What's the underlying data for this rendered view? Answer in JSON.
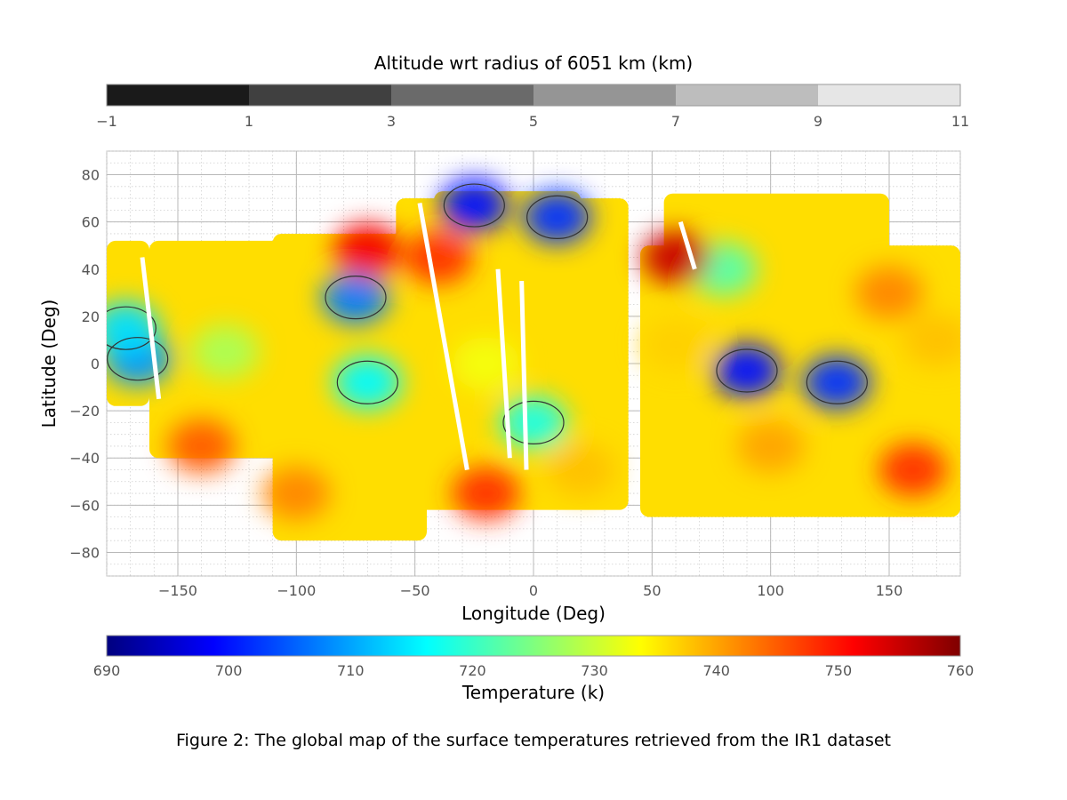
{
  "caption": "Figure 2: The global map of the surface temperatures retrieved from the IR1 dataset",
  "chart_data": {
    "type": "heatmap",
    "xlabel": "Longitude (Deg)",
    "ylabel": "Latitude (Deg)",
    "xlim": [
      -180,
      180
    ],
    "ylim": [
      -90,
      90
    ],
    "xticks": [
      -150,
      -100,
      -50,
      0,
      50,
      100,
      150
    ],
    "yticks": [
      80,
      60,
      40,
      20,
      0,
      -20,
      -40,
      -60,
      -80
    ],
    "grid": true,
    "colormap": "jet",
    "colorbar_temperature": {
      "label": "Temperature (k)",
      "range": [
        690,
        760
      ],
      "ticks": [
        690,
        700,
        710,
        720,
        730,
        740,
        750,
        760
      ]
    },
    "colorbar_altitude": {
      "label": "Altitude wrt radius of 6051 km (km)",
      "levels": [
        -1,
        1,
        3,
        5,
        7,
        9,
        11
      ],
      "level_colors": [
        "#1a1a1a",
        "#404040",
        "#6a6a6a",
        "#959595",
        "#bdbdbd",
        "#e6e6e6"
      ]
    },
    "swaths": [
      {
        "lon_min": -180,
        "lon_max": -162,
        "lat_min": -18,
        "lat_max": 52
      },
      {
        "lon_min": -162,
        "lon_max": -50,
        "lat_min": -40,
        "lat_max": 52
      },
      {
        "lon_min": -110,
        "lon_max": -45,
        "lat_min": -75,
        "lat_max": 55
      },
      {
        "lon_min": -58,
        "lon_max": 40,
        "lat_min": -62,
        "lat_max": 70
      },
      {
        "lon_min": -42,
        "lon_max": 20,
        "lat_min": 50,
        "lat_max": 73
      },
      {
        "lon_min": 45,
        "lon_max": 180,
        "lat_min": -65,
        "lat_max": 50
      },
      {
        "lon_min": 55,
        "lon_max": 150,
        "lat_min": 40,
        "lat_max": 72
      }
    ],
    "temperature_regions": [
      {
        "lon": -75,
        "lat": 28,
        "value": 707
      },
      {
        "lon": -167,
        "lat": 2,
        "value": 709
      },
      {
        "lon": -172,
        "lat": 15,
        "value": 714
      },
      {
        "lon": -70,
        "lat": -8,
        "value": 716
      },
      {
        "lon": -25,
        "lat": 67,
        "value": 700
      },
      {
        "lon": 10,
        "lat": 62,
        "value": 702
      },
      {
        "lon": 90,
        "lat": -3,
        "value": 700
      },
      {
        "lon": 128,
        "lat": -8,
        "value": 702
      },
      {
        "lon": 0,
        "lat": -25,
        "value": 718
      },
      {
        "lon": 80,
        "lat": 40,
        "value": 722
      },
      {
        "lon": -130,
        "lat": 5,
        "value": 728
      },
      {
        "lon": -20,
        "lat": 0,
        "value": 733
      },
      {
        "lon": 60,
        "lat": 8,
        "value": 737
      },
      {
        "lon": -40,
        "lat": 45,
        "value": 748
      },
      {
        "lon": -70,
        "lat": 48,
        "value": 752
      },
      {
        "lon": 60,
        "lat": 45,
        "value": 755
      },
      {
        "lon": -20,
        "lat": -55,
        "value": 748
      },
      {
        "lon": 160,
        "lat": -45,
        "value": 748
      },
      {
        "lon": 150,
        "lat": 30,
        "value": 742
      },
      {
        "lon": -140,
        "lat": -35,
        "value": 745
      },
      {
        "lon": 100,
        "lat": -35,
        "value": 740
      },
      {
        "lon": 170,
        "lat": 10,
        "value": 738
      },
      {
        "lon": -100,
        "lat": -55,
        "value": 742
      },
      {
        "lon": 20,
        "lat": -45,
        "value": 738
      }
    ]
  }
}
